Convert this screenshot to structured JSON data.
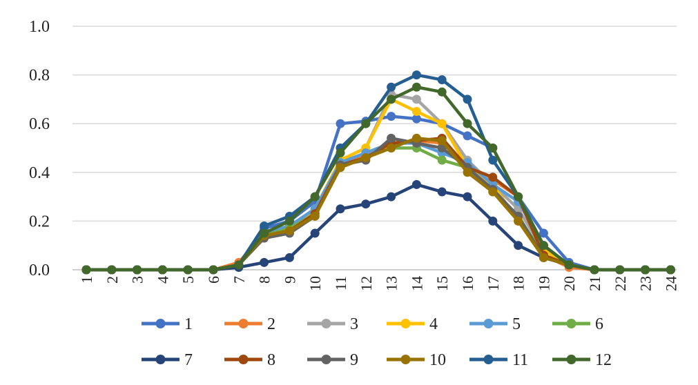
{
  "chart_data": {
    "type": "line",
    "title": "",
    "xlabel": "",
    "ylabel": "",
    "x": [
      "1",
      "2",
      "3",
      "4",
      "5",
      "6",
      "7",
      "8",
      "9",
      "10",
      "11",
      "12",
      "13",
      "14",
      "15",
      "16",
      "17",
      "18",
      "19",
      "20",
      "21",
      "22",
      "23",
      "24"
    ],
    "ylim": [
      0,
      1.0
    ],
    "yticks": [
      "0.0",
      "0.2",
      "0.4",
      "0.6",
      "0.8",
      "1.0"
    ],
    "grid": true,
    "legend_position": "bottom",
    "series": [
      {
        "name": "1",
        "color": "#4472c4",
        "values": [
          0,
          0,
          0,
          0,
          0,
          0,
          0.02,
          0.17,
          0.2,
          0.28,
          0.6,
          0.61,
          0.63,
          0.62,
          0.6,
          0.55,
          0.5,
          0.3,
          0.15,
          0.03,
          0,
          0,
          0,
          0
        ]
      },
      {
        "name": "2",
        "color": "#ed7d31",
        "values": [
          0,
          0,
          0,
          0,
          0,
          0,
          0.03,
          0.15,
          0.17,
          0.24,
          0.43,
          0.47,
          0.52,
          0.53,
          0.52,
          0.43,
          0.37,
          0.3,
          0.06,
          0.01,
          0,
          0,
          0,
          0
        ]
      },
      {
        "name": "3",
        "color": "#a5a5a5",
        "values": [
          0,
          0,
          0,
          0,
          0,
          0,
          0.02,
          0.15,
          0.17,
          0.25,
          0.45,
          0.5,
          0.72,
          0.7,
          0.6,
          0.45,
          0.35,
          0.25,
          0.08,
          0.02,
          0,
          0,
          0,
          0
        ]
      },
      {
        "name": "4",
        "color": "#ffc000",
        "values": [
          0,
          0,
          0,
          0,
          0,
          0,
          0.02,
          0.15,
          0.17,
          0.25,
          0.45,
          0.5,
          0.7,
          0.65,
          0.6,
          0.42,
          0.35,
          0.2,
          0.08,
          0.02,
          0,
          0,
          0,
          0
        ]
      },
      {
        "name": "5",
        "color": "#5b9bd5",
        "values": [
          0,
          0,
          0,
          0,
          0,
          0,
          0.02,
          0.15,
          0.18,
          0.25,
          0.44,
          0.48,
          0.52,
          0.52,
          0.48,
          0.44,
          0.35,
          0.28,
          0.1,
          0.02,
          0,
          0,
          0,
          0
        ]
      },
      {
        "name": "6",
        "color": "#70ad47",
        "values": [
          0,
          0,
          0,
          0,
          0,
          0,
          0.02,
          0.14,
          0.17,
          0.23,
          0.42,
          0.46,
          0.5,
          0.5,
          0.45,
          0.42,
          0.32,
          0.22,
          0.06,
          0.02,
          0,
          0,
          0,
          0
        ]
      },
      {
        "name": "7",
        "color": "#264478",
        "values": [
          0,
          0,
          0,
          0,
          0,
          0,
          0.01,
          0.03,
          0.05,
          0.15,
          0.25,
          0.27,
          0.3,
          0.35,
          0.32,
          0.3,
          0.2,
          0.1,
          0.05,
          0.02,
          0,
          0,
          0,
          0
        ]
      },
      {
        "name": "8",
        "color": "#9e480e",
        "values": [
          0,
          0,
          0,
          0,
          0,
          0,
          0.02,
          0.14,
          0.16,
          0.23,
          0.43,
          0.46,
          0.52,
          0.53,
          0.54,
          0.42,
          0.38,
          0.3,
          0.06,
          0.02,
          0,
          0,
          0,
          0
        ]
      },
      {
        "name": "9",
        "color": "#636363",
        "values": [
          0,
          0,
          0,
          0,
          0,
          0,
          0.02,
          0.13,
          0.15,
          0.22,
          0.43,
          0.45,
          0.54,
          0.52,
          0.5,
          0.42,
          0.33,
          0.22,
          0.05,
          0.02,
          0,
          0,
          0,
          0
        ]
      },
      {
        "name": "10",
        "color": "#997300",
        "values": [
          0,
          0,
          0,
          0,
          0,
          0,
          0.02,
          0.14,
          0.16,
          0.22,
          0.42,
          0.46,
          0.5,
          0.54,
          0.53,
          0.4,
          0.32,
          0.2,
          0.05,
          0.02,
          0,
          0,
          0,
          0
        ]
      },
      {
        "name": "11",
        "color": "#255e91",
        "values": [
          0,
          0,
          0,
          0,
          0,
          0,
          0.02,
          0.18,
          0.22,
          0.3,
          0.5,
          0.6,
          0.75,
          0.8,
          0.78,
          0.7,
          0.45,
          0.3,
          0.1,
          0.02,
          0,
          0,
          0,
          0
        ]
      },
      {
        "name": "12",
        "color": "#43682b",
        "values": [
          0,
          0,
          0,
          0,
          0,
          0,
          0.02,
          0.15,
          0.2,
          0.3,
          0.48,
          0.6,
          0.7,
          0.75,
          0.73,
          0.6,
          0.5,
          0.3,
          0.1,
          0.02,
          0,
          0,
          0,
          0
        ]
      }
    ]
  }
}
